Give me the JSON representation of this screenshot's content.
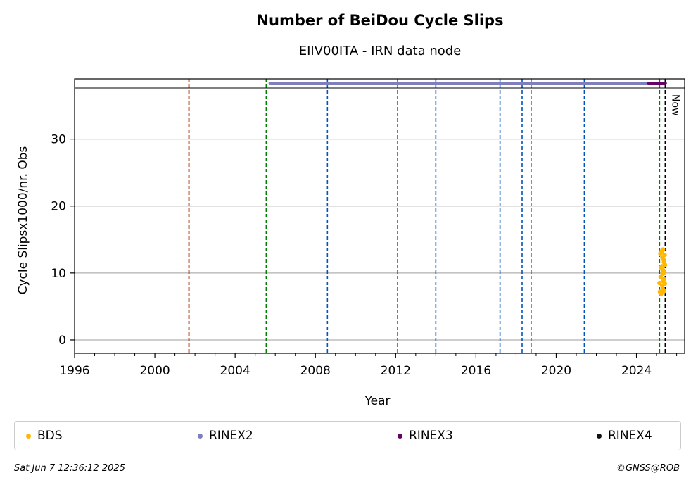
{
  "chart_data": {
    "type": "scatter",
    "title": "Number of BeiDou Cycle Slips",
    "subtitle": "EIIV00ITA - IRN data node",
    "xlabel": "Year",
    "ylabel": "Cycle Slipsx1000/nr. Obs",
    "xlim": [
      1996,
      2026.4
    ],
    "ylim": [
      -2,
      39
    ],
    "x_ticks": [
      1996,
      2000,
      2004,
      2008,
      2012,
      2016,
      2020,
      2024
    ],
    "y_ticks": [
      0,
      10,
      20,
      30
    ],
    "grid": "horizontal",
    "legend_position": "bottom",
    "now_label": "Now",
    "now_x": 2025.43,
    "vertical_lines": [
      {
        "x": 2001.7,
        "color": "#008000"
      },
      {
        "x": 2001.7,
        "color": "#ff0000"
      },
      {
        "x": 2005.55,
        "color": "#008000"
      },
      {
        "x": 2008.6,
        "color": "#0055bb"
      },
      {
        "x": 2012.1,
        "color": "#008000"
      },
      {
        "x": 2012.1,
        "color": "#ff0000"
      },
      {
        "x": 2014.0,
        "color": "#0055bb"
      },
      {
        "x": 2017.2,
        "color": "#0055bb"
      },
      {
        "x": 2018.3,
        "color": "#0055bb"
      },
      {
        "x": 2018.75,
        "color": "#008000"
      },
      {
        "x": 2021.4,
        "color": "#0055bb"
      },
      {
        "x": 2025.15,
        "color": "#008000"
      },
      {
        "x": 2025.43,
        "color": "#000000"
      }
    ],
    "series": [
      {
        "name": "BDS",
        "color": "#ffb700",
        "x": [
          2025.15,
          2025.17,
          2025.19,
          2025.2,
          2025.22,
          2025.23,
          2025.25,
          2025.26,
          2025.28,
          2025.29,
          2025.3,
          2025.31,
          2025.32,
          2025.33,
          2025.34,
          2025.35,
          2025.36,
          2025.37,
          2025.38,
          2025.39,
          2025.4,
          2025.41,
          2025.42
        ],
        "y": [
          8.5,
          7.2,
          12.9,
          9.4,
          10.8,
          6.9,
          13.2,
          11.0,
          8.1,
          12.3,
          9.9,
          7.6,
          13.5,
          10.4,
          8.8,
          12.0,
          9.1,
          11.6,
          7.3,
          10.1,
          12.7,
          8.4,
          11.2
        ]
      },
      {
        "name": "RINEX2",
        "color": "#7f7fbf",
        "x_start": 2005.75,
        "x_end": 2024.6,
        "y": 40.2
      },
      {
        "name": "RINEX3",
        "color": "#660066",
        "x_start": 2024.6,
        "x_end": 2025.43,
        "y": 40.2
      },
      {
        "name": "RINEX4",
        "color": "#111111",
        "x": [],
        "y": []
      }
    ]
  },
  "footer": {
    "timestamp": "Sat Jun  7 12:36:12 2025",
    "copyright": "©GNSS@ROB"
  }
}
